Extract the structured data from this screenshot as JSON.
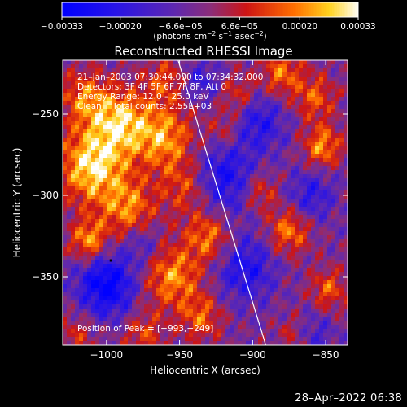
{
  "chart_data": {
    "type": "heatmap",
    "title": "Reconstructed RHESSI Image",
    "xlabel": "Heliocentric X (arcsec)",
    "ylabel": "Heliocentric Y (arcsec)",
    "xlim": [
      -1030,
      -835
    ],
    "ylim": [
      -392,
      -217
    ],
    "x_ticks": [
      -1000,
      -950,
      -900,
      -850
    ],
    "x_tick_labels": [
      "−1000",
      "−950",
      "−900",
      "−850"
    ],
    "y_ticks": [
      -250,
      -300,
      -350
    ],
    "y_tick_labels": [
      "−250",
      "−300",
      "−350"
    ],
    "colorbar": {
      "range": [
        -0.00033,
        0.00033
      ],
      "ticks": [
        -0.00033,
        -0.0002,
        -6.6e-05,
        6.6e-05,
        0.0002,
        0.00033
      ],
      "tick_labels": [
        "−0.00033",
        "−0.00020",
        "−6.6e−05",
        "6.6e−05",
        "0.00020",
        "0.00033"
      ],
      "unit_main": "(photons cm",
      "unit_sup1": "−2",
      "unit_mid1": " s",
      "unit_sup2": "−1",
      "unit_mid2": " asec",
      "unit_sup3": "−2",
      "unit_end": ")"
    },
    "annotations": [
      "21–Jan–2003 07:30:44.000 to 07:34:32.000",
      "Detectors: 3F 4F 5F 6F 7F 8F, Att 0",
      "Energy Range: 12.0 – 25.0 keV",
      "Clean    Total counts: 2.55E+03"
    ],
    "peak_label": "Position of Peak = [−993,−249]",
    "peak": [
      -993,
      -249
    ],
    "limb_line": [
      [
        -951,
        -217
      ],
      [
        -891,
        -392
      ]
    ],
    "hot_regions": [
      {
        "x": -1010,
        "y": -282,
        "v": 0.00033,
        "s": 16
      },
      {
        "x": -990,
        "y": -255,
        "v": 0.00028,
        "s": 14
      },
      {
        "x": -960,
        "y": -265,
        "v": 0.00025,
        "s": 14
      },
      {
        "x": -1015,
        "y": -240,
        "v": 0.0002,
        "s": 12
      },
      {
        "x": -985,
        "y": -308,
        "v": 0.00022,
        "s": 13
      },
      {
        "x": -1012,
        "y": -328,
        "v": 0.00026,
        "s": 9
      },
      {
        "x": -945,
        "y": -295,
        "v": 0.00018,
        "s": 12
      },
      {
        "x": -930,
        "y": -325,
        "v": 0.00022,
        "s": 11
      },
      {
        "x": -955,
        "y": -350,
        "v": 0.00024,
        "s": 14
      },
      {
        "x": -935,
        "y": -375,
        "v": 0.00018,
        "s": 10
      },
      {
        "x": -880,
        "y": -225,
        "v": 0.0002,
        "s": 10
      },
      {
        "x": -857,
        "y": -240,
        "v": 0.00018,
        "s": 10
      },
      {
        "x": -852,
        "y": -270,
        "v": 0.00024,
        "s": 9
      },
      {
        "x": -875,
        "y": -322,
        "v": 0.00022,
        "s": 10
      },
      {
        "x": -848,
        "y": -358,
        "v": 0.00018,
        "s": 9
      },
      {
        "x": -895,
        "y": -298,
        "v": 0.00016,
        "s": 9
      },
      {
        "x": -910,
        "y": -238,
        "v": 0.00014,
        "s": 9
      },
      {
        "x": -960,
        "y": -230,
        "v": 0.00016,
        "s": 10
      },
      {
        "x": -870,
        "y": -385,
        "v": 0.00014,
        "s": 9
      },
      {
        "x": -1020,
        "y": -385,
        "v": 0.00012,
        "s": 10
      },
      {
        "x": -975,
        "y": -385,
        "v": 0.00015,
        "s": 10
      },
      {
        "x": -920,
        "y": -260,
        "v": 0.00012,
        "s": 8
      }
    ],
    "cold_regions": [
      {
        "x": -1000,
        "y": -355,
        "v": -0.0003,
        "s": 14
      },
      {
        "x": -920,
        "y": -290,
        "v": -0.00022,
        "s": 16
      },
      {
        "x": -905,
        "y": -345,
        "v": -0.0002,
        "s": 14
      },
      {
        "x": -895,
        "y": -255,
        "v": -0.00018,
        "s": 12
      },
      {
        "x": -860,
        "y": -300,
        "v": -0.00016,
        "s": 11
      },
      {
        "x": -860,
        "y": -385,
        "v": -0.00015,
        "s": 10
      },
      {
        "x": -935,
        "y": -230,
        "v": -0.00014,
        "s": 9
      },
      {
        "x": -975,
        "y": -330,
        "v": -0.00012,
        "s": 9
      }
    ]
  },
  "footer": {
    "timestamp": "28–Apr–2022 06:38"
  }
}
